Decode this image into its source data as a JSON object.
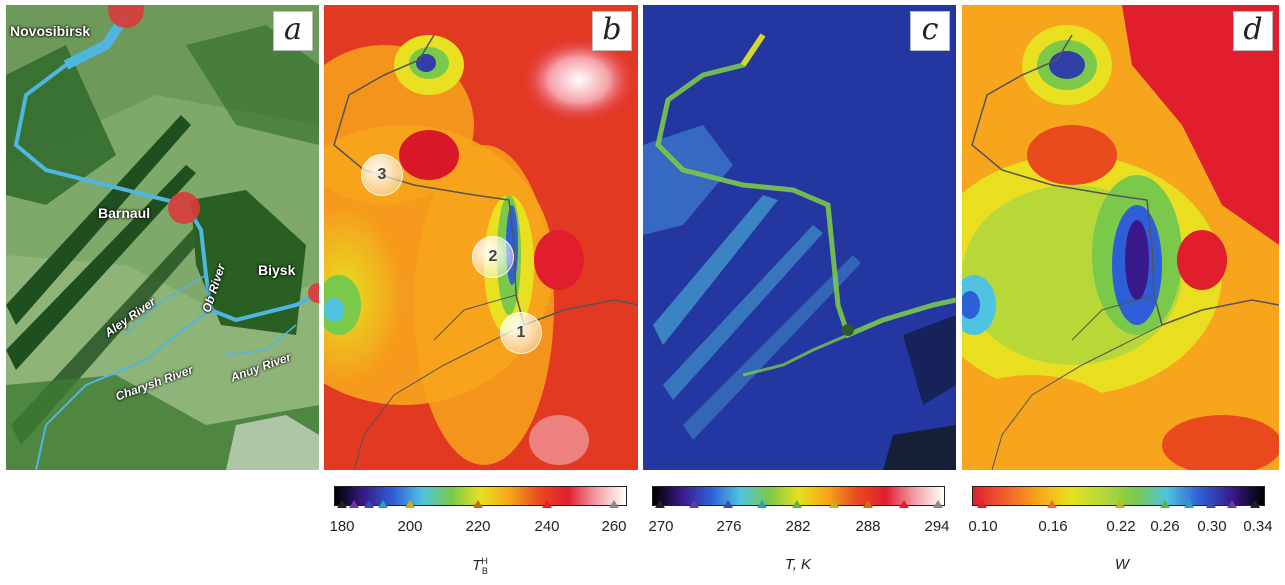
{
  "panels": {
    "a": {
      "label": "a"
    },
    "b": {
      "label": "b"
    },
    "c": {
      "label": "c"
    },
    "d": {
      "label": "d"
    }
  },
  "map_a": {
    "cities": [
      "Novosibirsk",
      "Barnaul",
      "Biysk"
    ],
    "rivers": [
      "Ob River",
      "Aley River",
      "Charysh River",
      "Anuy River"
    ]
  },
  "map_b": {
    "markers": [
      "3",
      "2",
      "1"
    ]
  },
  "colorbars": {
    "b": {
      "ticks": [
        "180",
        "200",
        "220",
        "240",
        "260"
      ],
      "quantity": "T",
      "quantity_sup": "H",
      "quantity_sub": "B",
      "colors": [
        "#000000",
        "#3a1a8a",
        "#2f5fd6",
        "#4fc3e0",
        "#7ac94a",
        "#e8e020",
        "#f7a51c",
        "#e84a1e",
        "#e01e2e",
        "#f2a0a8",
        "#ffffff"
      ]
    },
    "c": {
      "ticks": [
        "270",
        "276",
        "282",
        "288",
        "294"
      ],
      "quantity": "T, K",
      "colors": [
        "#000000",
        "#3a1a8a",
        "#2f5fd6",
        "#4fc3e0",
        "#7ac94a",
        "#e8e020",
        "#f7a51c",
        "#e84a1e",
        "#e01e2e",
        "#f2a0a8",
        "#ffffff"
      ]
    },
    "d": {
      "ticks": [
        "0.10",
        "0.16",
        "0.22",
        "0.26",
        "0.30",
        "0.34"
      ],
      "quantity": "W",
      "colors": [
        "#e01e2e",
        "#f0602a",
        "#f7a51c",
        "#e8e020",
        "#b8d83a",
        "#7ac94a",
        "#4fc3e0",
        "#2f5fd6",
        "#3a1a8a",
        "#000000"
      ]
    }
  }
}
